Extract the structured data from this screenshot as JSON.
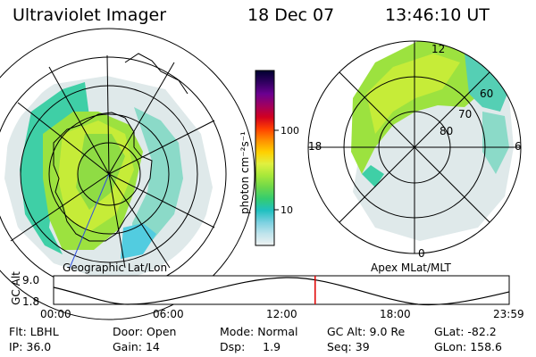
{
  "header": {
    "instrument": "Ultraviolet Imager",
    "date": "18 Dec 07",
    "time": "13:46:10 UT"
  },
  "colorbar": {
    "label": "photon cm⁻²s⁻¹",
    "ticks": [
      "100",
      "10"
    ],
    "colors": [
      "#000030",
      "#300060",
      "#6a0090",
      "#a00060",
      "#d20020",
      "#ff4000",
      "#ff9000",
      "#ffd000",
      "#e0f040",
      "#a8e83a",
      "#6ed84a",
      "#34cc70",
      "#20c0c0",
      "#7ad0e0",
      "#c0e4ec",
      "#eef2f2"
    ]
  },
  "left_panel": {
    "caption": "Geographic Lat/Lon"
  },
  "right_panel": {
    "caption": "Apex MLat/MLT",
    "mlt_labels": [
      "12",
      "18",
      "6",
      "0"
    ],
    "lat_labels": [
      "60",
      "70",
      "80"
    ]
  },
  "timeline": {
    "axis_label": "GC Alt",
    "y_ticks": [
      "9.0",
      "1.8"
    ],
    "x_ticks": [
      "00:00",
      "06:00",
      "12:00",
      "18:00",
      "23:59"
    ],
    "current_fraction": 0.574,
    "marker_color": "#e00000"
  },
  "footer": {
    "row1": [
      {
        "key": "Flt:",
        "value": "LBHL"
      },
      {
        "key": "Door:",
        "value": "Open"
      },
      {
        "key": "Mode:",
        "value": "Normal"
      },
      {
        "key": "GC Alt:",
        "value": "9.0 Re"
      },
      {
        "key": "GLat:",
        "value": "-82.2"
      }
    ],
    "row2": [
      {
        "key": "IP:",
        "value": "36.0"
      },
      {
        "key": "Gain:",
        "value": "14"
      },
      {
        "key": "Dsp:",
        "value": "1.9"
      },
      {
        "key": "Seq:",
        "value": "39"
      },
      {
        "key": "GLon:",
        "value": "158.6"
      }
    ]
  }
}
